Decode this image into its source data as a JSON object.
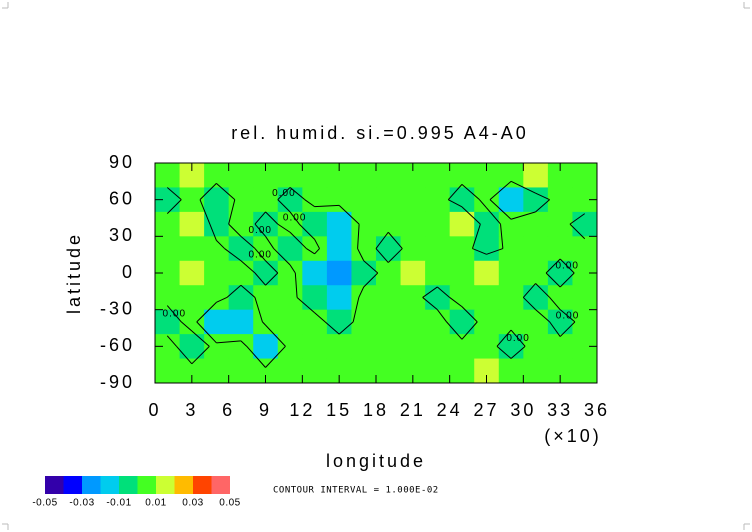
{
  "chart_data": {
    "type": "contour",
    "title": "rel. humid.  si.=0.995 A4-A0",
    "x_label": "longitude",
    "x_multiplier": "(×10)",
    "y_label": "latitude",
    "xlim": [
      0,
      36
    ],
    "xticks": [
      0,
      3,
      6,
      9,
      12,
      15,
      18,
      21,
      24,
      27,
      30,
      33,
      36
    ],
    "ylim": [
      -90,
      90
    ],
    "yticks": [
      -90,
      -60,
      -30,
      0,
      30,
      60,
      90
    ],
    "x": [
      1,
      3,
      5,
      7,
      9,
      11,
      13,
      15,
      17,
      19,
      21,
      23,
      25,
      27,
      29,
      31,
      33,
      35
    ],
    "y": [
      80,
      60,
      40,
      20,
      0,
      -20,
      -40,
      -60,
      -80
    ],
    "z": [
      [
        0.004,
        0.012,
        0.003,
        0.002,
        0.004,
        0.003,
        0.002,
        0.003,
        0.004,
        0.003,
        0.002,
        0.004,
        0.003,
        0.003,
        0.004,
        0.011,
        0.003,
        0.002
      ],
      [
        -0.004,
        0.003,
        -0.006,
        0.002,
        0.003,
        -0.003,
        0.002,
        0.004,
        0.003,
        0.002,
        0.003,
        0.004,
        -0.005,
        0.002,
        -0.012,
        -0.004,
        0.003,
        0.004
      ],
      [
        0.003,
        0.011,
        -0.004,
        0.004,
        -0.003,
        0.003,
        -0.005,
        -0.013,
        0.003,
        0.002,
        0.004,
        0.003,
        0.012,
        -0.004,
        0.003,
        0.004,
        0.002,
        -0.003
      ],
      [
        0.004,
        0.003,
        0.002,
        -0.004,
        0.003,
        -0.006,
        0.003,
        -0.012,
        0.004,
        -0.004,
        0.003,
        0.002,
        0.003,
        -0.004,
        0.002,
        0.004,
        0.003,
        0.002
      ],
      [
        0.003,
        0.012,
        0.002,
        0.004,
        -0.003,
        0.003,
        -0.011,
        -0.028,
        -0.004,
        0.003,
        0.012,
        0.004,
        0.003,
        0.013,
        0.004,
        0.003,
        -0.004,
        0.003
      ],
      [
        0.002,
        0.004,
        0.003,
        -0.004,
        0.003,
        0.002,
        -0.005,
        -0.012,
        0.003,
        0.004,
        0.002,
        -0.003,
        0.003,
        0.002,
        0.004,
        -0.004,
        0.003,
        0.002
      ],
      [
        -0.004,
        0.003,
        -0.012,
        -0.014,
        0.002,
        0.004,
        0.003,
        -0.004,
        0.003,
        0.002,
        0.004,
        0.003,
        -0.005,
        0.003,
        0.002,
        0.004,
        -0.003,
        0.002
      ],
      [
        0.003,
        -0.005,
        0.002,
        0.004,
        -0.013,
        0.003,
        0.002,
        0.004,
        0.003,
        0.002,
        0.003,
        0.004,
        0.002,
        0.003,
        -0.004,
        0.003,
        0.002,
        0.003
      ],
      [
        0.003,
        0.002,
        0.004,
        0.003,
        0.002,
        0.003,
        0.004,
        0.002,
        0.003,
        0.004,
        0.003,
        0.002,
        0.003,
        0.012,
        0.004,
        0.003,
        0.002,
        0.003
      ]
    ],
    "levels": [
      -0.05,
      -0.04,
      -0.03,
      -0.02,
      -0.01,
      0,
      0.01,
      0.02,
      0.03,
      0.04,
      0.05
    ],
    "colors": [
      "#3300aa",
      "#0000ff",
      "#0099ff",
      "#00ccee",
      "#00e07a",
      "#44ff22",
      "#ccff33",
      "#ffbb00",
      "#ff4400",
      "#ff6666"
    ],
    "colorbar_ticks": [
      -0.05,
      -0.03,
      -0.01,
      0.01,
      0.03,
      0.05
    ],
    "contour_levels": [
      {
        "value": 0,
        "label": "0.00"
      }
    ],
    "contour_interval": "CONTOUR INTERVAL = 1.000E-02"
  }
}
